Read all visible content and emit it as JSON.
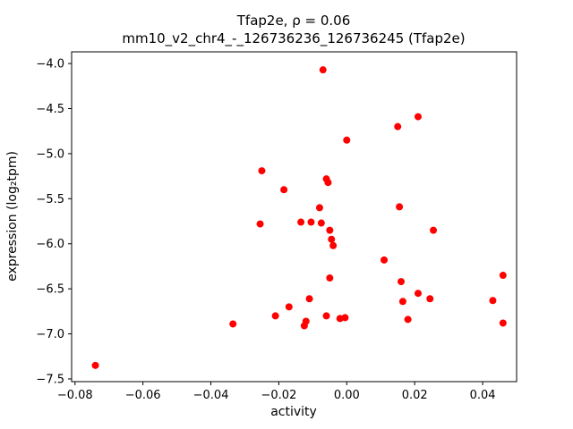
{
  "chart_data": {
    "type": "scatter",
    "title_line1": "Tfap2e, ρ = 0.06",
    "title_line2": "mm10_v2_chr4_-_126736236_126736245 (Tfap2e)",
    "xlabel": "activity",
    "ylabel": "expression (log₂tpm)",
    "xlim": [
      -0.081,
      0.05
    ],
    "ylim": [
      -7.53,
      -3.87
    ],
    "grid": false,
    "legend": "none",
    "marker_color": "#ff0000",
    "marker_radius": 4,
    "xticks": {
      "values": [
        -0.08,
        -0.06,
        -0.04,
        -0.02,
        0.0,
        0.02,
        0.04
      ],
      "labels": [
        "−0.08",
        "−0.06",
        "−0.04",
        "−0.02",
        "0.00",
        "0.02",
        "0.04"
      ]
    },
    "yticks": {
      "values": [
        -4.0,
        -4.5,
        -5.0,
        -5.5,
        -6.0,
        -6.5,
        -7.0,
        -7.5
      ],
      "labels": [
        "−4.0",
        "−4.5",
        "−5.0",
        "−5.5",
        "−6.0",
        "−6.5",
        "−7.0",
        "−7.5"
      ]
    },
    "points": [
      [
        -0.074,
        -7.35
      ],
      [
        -0.0335,
        -6.89
      ],
      [
        -0.025,
        -5.19
      ],
      [
        -0.0255,
        -5.78
      ],
      [
        -0.021,
        -6.8
      ],
      [
        -0.0185,
        -5.4
      ],
      [
        -0.017,
        -6.7
      ],
      [
        -0.0135,
        -5.76
      ],
      [
        -0.0125,
        -6.91
      ],
      [
        -0.012,
        -6.86
      ],
      [
        -0.011,
        -6.61
      ],
      [
        -0.0105,
        -5.76
      ],
      [
        -0.008,
        -5.6
      ],
      [
        -0.007,
        -4.07
      ],
      [
        -0.0075,
        -5.77
      ],
      [
        -0.006,
        -5.28
      ],
      [
        -0.0055,
        -5.32
      ],
      [
        -0.005,
        -5.85
      ],
      [
        -0.0045,
        -5.95
      ],
      [
        -0.005,
        -6.38
      ],
      [
        -0.004,
        -6.02
      ],
      [
        -0.006,
        -6.8
      ],
      [
        -0.002,
        -6.83
      ],
      [
        0.0,
        -4.85
      ],
      [
        -0.0005,
        -6.82
      ],
      [
        0.011,
        -6.18
      ],
      [
        0.015,
        -4.7
      ],
      [
        0.0155,
        -5.59
      ],
      [
        0.016,
        -6.42
      ],
      [
        0.0165,
        -6.64
      ],
      [
        0.018,
        -6.84
      ],
      [
        0.021,
        -4.59
      ],
      [
        0.021,
        -6.55
      ],
      [
        0.0245,
        -6.61
      ],
      [
        0.0255,
        -5.85
      ],
      [
        0.043,
        -6.63
      ],
      [
        0.046,
        -6.35
      ],
      [
        0.046,
        -6.88
      ]
    ]
  }
}
